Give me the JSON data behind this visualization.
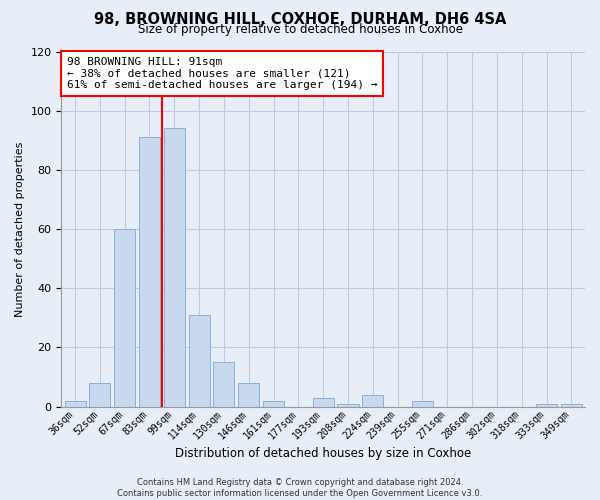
{
  "title": "98, BROWNING HILL, COXHOE, DURHAM, DH6 4SA",
  "subtitle": "Size of property relative to detached houses in Coxhoe",
  "xlabel": "Distribution of detached houses by size in Coxhoe",
  "ylabel": "Number of detached properties",
  "bar_labels": [
    "36sqm",
    "52sqm",
    "67sqm",
    "83sqm",
    "99sqm",
    "114sqm",
    "130sqm",
    "146sqm",
    "161sqm",
    "177sqm",
    "193sqm",
    "208sqm",
    "224sqm",
    "239sqm",
    "255sqm",
    "271sqm",
    "286sqm",
    "302sqm",
    "318sqm",
    "333sqm",
    "349sqm"
  ],
  "bar_values": [
    2,
    8,
    60,
    91,
    94,
    31,
    15,
    8,
    2,
    0,
    3,
    1,
    4,
    0,
    2,
    0,
    0,
    0,
    0,
    1,
    1
  ],
  "bar_color": "#c8d8ee",
  "bar_edgecolor": "#8ab0d4",
  "ylim": [
    0,
    120
  ],
  "yticks": [
    0,
    20,
    40,
    60,
    80,
    100,
    120
  ],
  "property_label": "98 BROWNING HILL: 91sqm",
  "annotation_line1": "← 38% of detached houses are smaller (121)",
  "annotation_line2": "61% of semi-detached houses are larger (194) →",
  "vline_x_index": 3.5,
  "footer_line1": "Contains HM Land Registry data © Crown copyright and database right 2024.",
  "footer_line2": "Contains public sector information licensed under the Open Government Licence v3.0.",
  "background_color": "#e8eef8",
  "plot_background_color": "#e8eef8",
  "grid_color": "#c0cce0"
}
